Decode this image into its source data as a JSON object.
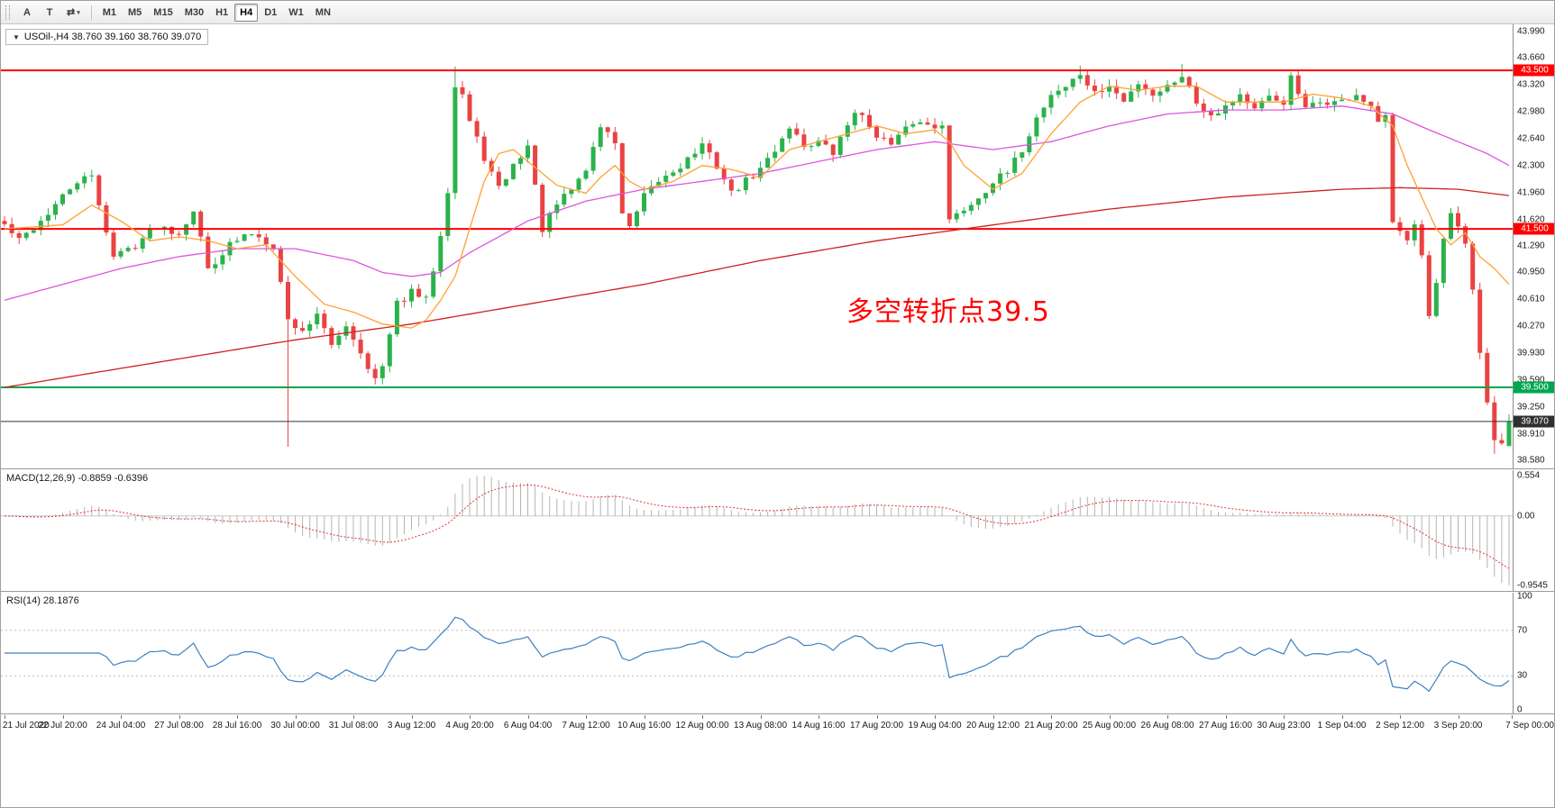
{
  "toolbar": {
    "tools": [
      {
        "label": "A",
        "name": "text-tool"
      },
      {
        "label": "T",
        "name": "text-label-tool"
      },
      {
        "label": "⇄",
        "name": "arrows-tool"
      }
    ],
    "timeframes": [
      "M1",
      "M5",
      "M15",
      "M30",
      "H1",
      "H4",
      "D1",
      "W1",
      "MN"
    ],
    "selected_timeframe": "H4"
  },
  "main_chart": {
    "title": "USOil-,H4 38.760 39.160 38.760 39.070",
    "symbol": "USOil",
    "period": "H4",
    "ohlc": {
      "open": "38.760",
      "high": "39.160",
      "low": "38.760",
      "close": "39.070"
    },
    "annotation": {
      "text": "多空转折点39.5",
      "color": "#ff0000"
    }
  },
  "indicators": {
    "macd_label": "MACD(12,26,9) -0.8859 -0.6396",
    "rsi_label": "RSI(14) 28.1876"
  },
  "chart_data": [
    {
      "type": "candlestick",
      "title": "USOil-,H4",
      "symbol": "USOil",
      "timeframe": "H4",
      "x_labels": [
        "21 Jul 2020",
        "22 Jul 20:00",
        "24 Jul 04:00",
        "27 Jul 08:00",
        "28 Jul 16:00",
        "30 Jul 00:00",
        "31 Jul 08:00",
        "3 Aug 12:00",
        "4 Aug 20:00",
        "6 Aug 04:00",
        "7 Aug 12:00",
        "10 Aug 16:00",
        "12 Aug 00:00",
        "13 Aug 08:00",
        "14 Aug 16:00",
        "17 Aug 20:00",
        "19 Aug 04:00",
        "20 Aug 12:00",
        "21 Aug 20:00",
        "25 Aug 00:00",
        "26 Aug 08:00",
        "27 Aug 16:00",
        "30 Aug 23:00",
        "1 Sep 04:00",
        "2 Sep 12:00",
        "3 Sep 20:00",
        "7 Sep 00:00"
      ],
      "y_ticks": [
        "43.990",
        "43.660",
        "43.320",
        "42.980",
        "42.640",
        "42.300",
        "41.960",
        "41.620",
        "41.290",
        "40.950",
        "40.610",
        "40.270",
        "39.930",
        "39.590",
        "39.250",
        "38.910",
        "38.580"
      ],
      "y_range": [
        38.58,
        43.99
      ],
      "candle_count": 208,
      "noise": 0.05,
      "seed": 42,
      "colors": {
        "bull": "#2bb24c",
        "bear": "#e94343"
      },
      "close_anchors": [
        [
          0,
          41.55
        ],
        [
          2,
          41.35
        ],
        [
          5,
          41.6
        ],
        [
          8,
          41.9
        ],
        [
          10,
          42.1
        ],
        [
          12,
          42.15
        ],
        [
          15,
          41.15
        ],
        [
          18,
          41.3
        ],
        [
          21,
          41.55
        ],
        [
          24,
          41.45
        ],
        [
          26,
          41.75
        ],
        [
          28,
          41.0
        ],
        [
          31,
          41.3
        ],
        [
          34,
          41.45
        ],
        [
          37,
          41.3
        ],
        [
          39,
          40.35
        ],
        [
          41,
          40.2
        ],
        [
          43,
          40.45
        ],
        [
          45,
          40.0
        ],
        [
          47,
          40.3
        ],
        [
          49,
          39.95
        ],
        [
          51,
          39.6
        ],
        [
          52,
          39.75
        ],
        [
          54,
          40.55
        ],
        [
          56,
          40.7
        ],
        [
          58,
          40.6
        ],
        [
          59,
          41.0
        ],
        [
          60,
          41.45
        ],
        [
          61,
          42.0
        ],
        [
          62,
          43.3
        ],
        [
          63,
          43.2
        ],
        [
          64,
          42.85
        ],
        [
          66,
          42.4
        ],
        [
          68,
          42.0
        ],
        [
          70,
          42.3
        ],
        [
          72,
          42.55
        ],
        [
          74,
          41.5
        ],
        [
          76,
          41.8
        ],
        [
          78,
          42.0
        ],
        [
          80,
          42.25
        ],
        [
          82,
          42.8
        ],
        [
          84,
          42.6
        ],
        [
          85,
          41.7
        ],
        [
          86,
          41.5
        ],
        [
          88,
          41.9
        ],
        [
          90,
          42.1
        ],
        [
          93,
          42.3
        ],
        [
          96,
          42.55
        ],
        [
          98,
          42.3
        ],
        [
          100,
          41.95
        ],
        [
          102,
          42.1
        ],
        [
          104,
          42.25
        ],
        [
          106,
          42.5
        ],
        [
          108,
          42.8
        ],
        [
          110,
          42.55
        ],
        [
          112,
          42.6
        ],
        [
          114,
          42.45
        ],
        [
          117,
          43.0
        ],
        [
          120,
          42.7
        ],
        [
          122,
          42.55
        ],
        [
          125,
          42.85
        ],
        [
          128,
          42.8
        ],
        [
          129,
          42.85
        ],
        [
          130,
          41.6
        ],
        [
          132,
          41.75
        ],
        [
          134,
          41.9
        ],
        [
          136,
          42.1
        ],
        [
          138,
          42.2
        ],
        [
          140,
          42.5
        ],
        [
          142,
          42.9
        ],
        [
          144,
          43.2
        ],
        [
          146,
          43.3
        ],
        [
          148,
          43.45
        ],
        [
          150,
          43.2
        ],
        [
          152,
          43.3
        ],
        [
          154,
          43.1
        ],
        [
          156,
          43.35
        ],
        [
          158,
          43.2
        ],
        [
          160,
          43.3
        ],
        [
          162,
          43.45
        ],
        [
          164,
          43.1
        ],
        [
          166,
          42.95
        ],
        [
          168,
          43.05
        ],
        [
          170,
          43.2
        ],
        [
          172,
          43.0
        ],
        [
          174,
          43.15
        ],
        [
          176,
          43.1
        ],
        [
          177,
          43.4
        ],
        [
          179,
          43.0
        ],
        [
          181,
          43.1
        ],
        [
          184,
          43.1
        ],
        [
          186,
          43.2
        ],
        [
          188,
          43.0
        ],
        [
          189,
          42.85
        ],
        [
          190,
          42.9
        ],
        [
          191,
          41.55
        ],
        [
          192,
          41.45
        ],
        [
          193,
          41.4
        ],
        [
          194,
          41.6
        ],
        [
          195,
          41.2
        ],
        [
          196,
          40.4
        ],
        [
          197,
          40.8
        ],
        [
          198,
          41.35
        ],
        [
          199,
          41.65
        ],
        [
          200,
          41.5
        ],
        [
          201,
          41.3
        ],
        [
          202,
          40.7
        ],
        [
          203,
          39.9
        ],
        [
          204,
          39.3
        ],
        [
          205,
          38.85
        ],
        [
          206,
          38.8
        ],
        [
          207,
          39.07
        ]
      ],
      "wick_overrides": [
        {
          "i": 39,
          "low": 38.75
        },
        {
          "i": 62,
          "high": 43.55
        },
        {
          "i": 148,
          "high": 43.56
        },
        {
          "i": 162,
          "high": 43.58
        },
        {
          "i": 205,
          "low": 38.66
        }
      ],
      "last_candle": {
        "open": 38.76,
        "high": 39.16,
        "low": 38.76,
        "close": 39.07
      },
      "levels": [
        {
          "price": 43.5,
          "label": "43.500",
          "color": "#ff0000",
          "width": 2
        },
        {
          "price": 41.5,
          "label": "41.500",
          "color": "#ff0000",
          "width": 2
        },
        {
          "price": 39.5,
          "label": "39.500",
          "color": "#00a651",
          "width": 2
        },
        {
          "price": 39.07,
          "label": "39.070",
          "color": "#303030",
          "width": 1,
          "current": true
        }
      ],
      "moving_averages": [
        {
          "name": "slow-ma",
          "color": "#cc2222",
          "anchors": [
            [
              0,
              39.5
            ],
            [
              40,
              40.1
            ],
            [
              56,
              40.3
            ],
            [
              72,
              40.55
            ],
            [
              88,
              40.8
            ],
            [
              104,
              41.1
            ],
            [
              120,
              41.35
            ],
            [
              136,
              41.55
            ],
            [
              152,
              41.75
            ],
            [
              168,
              41.9
            ],
            [
              184,
              42.0
            ],
            [
              192,
              42.02
            ],
            [
              200,
              42.0
            ],
            [
              207,
              41.92
            ]
          ]
        },
        {
          "name": "medium-ma",
          "color": "#dd55dd",
          "anchors": [
            [
              0,
              40.6
            ],
            [
              8,
              40.8
            ],
            [
              16,
              41.0
            ],
            [
              24,
              41.15
            ],
            [
              32,
              41.25
            ],
            [
              40,
              41.25
            ],
            [
              48,
              41.1
            ],
            [
              52,
              40.95
            ],
            [
              56,
              40.9
            ],
            [
              60,
              40.95
            ],
            [
              64,
              41.2
            ],
            [
              72,
              41.6
            ],
            [
              80,
              41.85
            ],
            [
              88,
              42.0
            ],
            [
              96,
              42.1
            ],
            [
              104,
              42.2
            ],
            [
              112,
              42.35
            ],
            [
              120,
              42.5
            ],
            [
              128,
              42.6
            ],
            [
              132,
              42.55
            ],
            [
              136,
              42.5
            ],
            [
              144,
              42.6
            ],
            [
              152,
              42.8
            ],
            [
              160,
              42.95
            ],
            [
              168,
              43.0
            ],
            [
              176,
              43.0
            ],
            [
              184,
              43.05
            ],
            [
              191,
              42.95
            ],
            [
              196,
              42.75
            ],
            [
              200,
              42.6
            ],
            [
              204,
              42.45
            ],
            [
              207,
              42.3
            ]
          ]
        },
        {
          "name": "fast-ma",
          "color": "#ffa133",
          "anchors": [
            [
              0,
              41.5
            ],
            [
              8,
              41.55
            ],
            [
              12,
              41.8
            ],
            [
              16,
              41.6
            ],
            [
              20,
              41.35
            ],
            [
              24,
              41.4
            ],
            [
              28,
              41.35
            ],
            [
              32,
              41.25
            ],
            [
              36,
              41.3
            ],
            [
              40,
              40.9
            ],
            [
              44,
              40.55
            ],
            [
              48,
              40.45
            ],
            [
              52,
              40.3
            ],
            [
              56,
              40.25
            ],
            [
              58,
              40.35
            ],
            [
              60,
              40.6
            ],
            [
              62,
              40.9
            ],
            [
              64,
              41.5
            ],
            [
              66,
              42.1
            ],
            [
              68,
              42.45
            ],
            [
              70,
              42.5
            ],
            [
              72,
              42.35
            ],
            [
              76,
              42.05
            ],
            [
              80,
              41.95
            ],
            [
              82,
              42.15
            ],
            [
              84,
              42.3
            ],
            [
              86,
              42.1
            ],
            [
              88,
              42.0
            ],
            [
              92,
              42.1
            ],
            [
              96,
              42.3
            ],
            [
              100,
              42.25
            ],
            [
              104,
              42.15
            ],
            [
              108,
              42.5
            ],
            [
              112,
              42.6
            ],
            [
              116,
              42.7
            ],
            [
              120,
              42.8
            ],
            [
              124,
              42.7
            ],
            [
              128,
              42.75
            ],
            [
              130,
              42.6
            ],
            [
              132,
              42.3
            ],
            [
              136,
              42.0
            ],
            [
              140,
              42.2
            ],
            [
              144,
              42.7
            ],
            [
              148,
              43.1
            ],
            [
              152,
              43.3
            ],
            [
              156,
              43.25
            ],
            [
              160,
              43.3
            ],
            [
              164,
              43.3
            ],
            [
              168,
              43.1
            ],
            [
              172,
              43.1
            ],
            [
              176,
              43.1
            ],
            [
              180,
              43.2
            ],
            [
              184,
              43.15
            ],
            [
              188,
              43.05
            ],
            [
              191,
              42.8
            ],
            [
              193,
              42.3
            ],
            [
              195,
              41.9
            ],
            [
              197,
              41.5
            ],
            [
              199,
              41.3
            ],
            [
              201,
              41.45
            ],
            [
              203,
              41.15
            ],
            [
              205,
              41.0
            ],
            [
              207,
              40.8
            ]
          ]
        }
      ]
    },
    {
      "type": "macd-histogram",
      "label": "MACD(12,26,9) -0.8859 -0.6396",
      "params": [
        12,
        26,
        9
      ],
      "main_value": -0.8859,
      "signal_value": -0.6396,
      "y_ticks": [
        "0.554",
        "0.00",
        "-0.9545"
      ],
      "y_range": [
        -0.9545,
        0.554
      ],
      "histogram_color": "#b4b4b4",
      "signal_color": "#dd3333"
    },
    {
      "type": "line",
      "label": "RSI(14) 28.1876",
      "period": 14,
      "value": 28.1876,
      "y_ticks": [
        "100",
        "70",
        "30",
        "0"
      ],
      "levels": [
        70,
        30
      ],
      "y_range": [
        0,
        100
      ],
      "line_color": "#3d7fc1"
    }
  ]
}
